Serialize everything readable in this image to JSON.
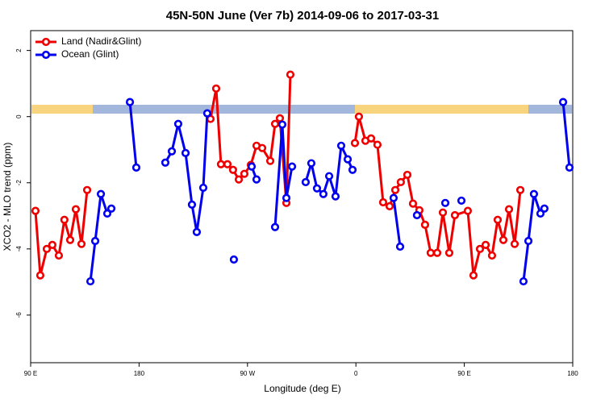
{
  "chart_data": {
    "type": "line",
    "title": "45N-50N June (Ver 7b)   2014-09-06 to 2017-03-31",
    "x_label": "Longitude (deg E)",
    "y_label": "XCO2 - MLO trend (ppm)",
    "xlim": [
      86,
      536
    ],
    "ylim": [
      -7.44,
      2.6
    ],
    "xticks": [
      {
        "value": 86,
        "label": "90 E"
      },
      {
        "value": 176,
        "label": "180"
      },
      {
        "value": 266,
        "label": "90 W"
      },
      {
        "value": 356,
        "label": "0"
      },
      {
        "value": 446,
        "label": "90 E"
      },
      {
        "value": 536,
        "label": "180"
      }
    ],
    "yticks": [
      2,
      0,
      -2,
      -4,
      -6
    ],
    "legend": "top-left",
    "series": [
      {
        "name": "Land (Nadir&Glint)",
        "color": "#ee0000",
        "x": [
          90,
          94,
          99.4,
          104,
          109.4,
          114,
          118.8,
          123.5,
          128.2,
          132.9,
          null,
          235.3,
          240,
          244,
          249.4,
          254,
          258.8,
          263.4,
          268.8,
          273.5,
          278.2,
          284.9,
          288.9,
          292.9,
          298.3,
          301.6,
          null,
          355.2,
          358.5,
          363.9,
          368.6,
          373.9,
          378.6,
          384,
          388.7,
          393.3,
          398.7,
          403.4,
          408.7,
          413.4,
          418.1,
          423.5,
          428.2,
          433.5,
          438.2,
          448.9,
          453.6,
          459,
          463.7,
          469,
          473.7,
          478.4,
          483.1,
          487.8,
          492.5
        ],
        "values": [
          -2.85,
          -4.8,
          -4.0,
          -3.88,
          -4.2,
          -3.12,
          -3.73,
          -2.8,
          -3.85,
          -2.22,
          null,
          -0.07,
          0.85,
          -1.44,
          -1.44,
          -1.61,
          -1.9,
          -1.73,
          -1.46,
          -0.88,
          -0.95,
          -1.34,
          -0.22,
          -0.05,
          -2.61,
          1.27,
          null,
          -0.8,
          0,
          -0.73,
          -0.66,
          -0.85,
          -2.59,
          -2.71,
          -2.22,
          -1.98,
          -1.76,
          -2.63,
          -2.83,
          -3.27,
          -4.12,
          -4.12,
          -2.9,
          -4.12,
          -2.98,
          -2.85,
          -4.8,
          -4.0,
          -3.88,
          -4.2,
          -3.12,
          -3.73,
          -2.8,
          -3.85,
          -2.22
        ]
      },
      {
        "name": "Ocean (Glint)",
        "color": "#0000ee",
        "x": [
          135.6,
          139.6,
          144.3,
          149.6,
          153,
          null,
          168.4,
          173.7,
          null,
          197.8,
          203.2,
          208.5,
          214.6,
          219.9,
          223.9,
          229.3,
          232.6,
          null,
          254.7,
          null,
          269.5,
          273.5,
          null,
          288.9,
          294.9,
          298.3,
          303,
          null,
          314.3,
          319,
          323.7,
          329,
          333.8,
          339.1,
          343.8,
          349.2,
          353.2,
          null,
          387.3,
          392.7,
          null,
          406.7,
          null,
          430.2,
          null,
          443.6,
          null,
          495.1,
          499.2,
          503.8,
          509.2,
          512.5,
          null,
          528,
          533.3
        ],
        "values": [
          -4.98,
          -3.76,
          -2.34,
          -2.93,
          -2.78,
          null,
          0.44,
          -1.54,
          null,
          -1.39,
          -1.05,
          -0.22,
          -1.1,
          -2.66,
          -3.49,
          -2.15,
          0.1,
          null,
          -4.32,
          null,
          -1.51,
          -1.9,
          null,
          -3.34,
          -0.24,
          -2.46,
          -1.51,
          null,
          -1.98,
          -1.41,
          -2.17,
          -2.34,
          -1.8,
          -2.41,
          -0.88,
          -1.29,
          -1.61,
          null,
          -2.46,
          -3.93,
          null,
          -2.98,
          null,
          -2.61,
          null,
          -2.54,
          null,
          -4.98,
          -3.76,
          -2.34,
          -2.93,
          -2.78,
          null,
          0.44,
          -1.54
        ]
      }
    ]
  }
}
